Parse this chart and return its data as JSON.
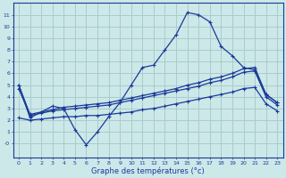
{
  "xlabel": "Graphe des températures (°c)",
  "background_color": "#cce8e8",
  "grid_color": "#aacccc",
  "line_color": "#1a3a9a",
  "xlim": [
    -0.5,
    23.5
  ],
  "ylim": [
    -1.2,
    12.0
  ],
  "xticks": [
    0,
    1,
    2,
    3,
    4,
    5,
    6,
    7,
    8,
    9,
    10,
    11,
    12,
    13,
    14,
    15,
    16,
    17,
    18,
    19,
    20,
    21,
    22,
    23
  ],
  "yticks": [
    0,
    1,
    2,
    3,
    4,
    5,
    6,
    7,
    8,
    9,
    10,
    11
  ],
  "ytick_labels": [
    "-0",
    "1",
    "2",
    "3",
    "4",
    "5",
    "6",
    "7",
    "8",
    "9",
    "10",
    "11"
  ],
  "line1_x": [
    0,
    1,
    3,
    4,
    5,
    6,
    7,
    8,
    9,
    10,
    11,
    12,
    13,
    14,
    15,
    16,
    17,
    18,
    19,
    20,
    21,
    22,
    23
  ],
  "line1_y": [
    5.0,
    2.2,
    3.2,
    3.0,
    1.2,
    -0.1,
    1.0,
    2.3,
    3.5,
    5.0,
    6.5,
    6.7,
    8.0,
    9.3,
    11.2,
    11.0,
    10.4,
    8.3,
    7.5,
    6.5,
    6.3,
    4.2,
    3.5
  ],
  "line2_x": [
    0,
    1,
    2,
    3,
    4,
    5,
    6,
    7,
    8,
    9,
    10,
    11,
    12,
    13,
    14,
    15,
    16,
    17,
    18,
    19,
    20,
    21,
    22,
    23
  ],
  "line2_y": [
    5.0,
    2.5,
    2.7,
    2.9,
    3.1,
    3.2,
    3.3,
    3.4,
    3.5,
    3.7,
    3.9,
    4.1,
    4.3,
    4.5,
    4.7,
    5.0,
    5.2,
    5.5,
    5.7,
    6.0,
    6.4,
    6.5,
    4.2,
    3.5
  ],
  "line3_x": [
    0,
    1,
    2,
    3,
    4,
    5,
    6,
    7,
    8,
    9,
    10,
    11,
    12,
    13,
    14,
    15,
    16,
    17,
    18,
    19,
    20,
    21,
    22,
    23
  ],
  "line3_y": [
    4.7,
    2.4,
    2.6,
    2.8,
    2.9,
    3.0,
    3.1,
    3.2,
    3.3,
    3.5,
    3.7,
    3.9,
    4.1,
    4.3,
    4.5,
    4.7,
    4.9,
    5.2,
    5.4,
    5.7,
    6.1,
    6.2,
    4.0,
    3.3
  ],
  "line4_x": [
    0,
    1,
    2,
    3,
    4,
    5,
    6,
    7,
    8,
    9,
    10,
    11,
    12,
    13,
    14,
    15,
    16,
    17,
    18,
    19,
    20,
    21,
    22,
    23
  ],
  "line4_y": [
    2.2,
    2.0,
    2.1,
    2.2,
    2.3,
    2.3,
    2.4,
    2.4,
    2.5,
    2.6,
    2.7,
    2.9,
    3.0,
    3.2,
    3.4,
    3.6,
    3.8,
    4.0,
    4.2,
    4.4,
    4.7,
    4.8,
    3.4,
    2.8
  ]
}
